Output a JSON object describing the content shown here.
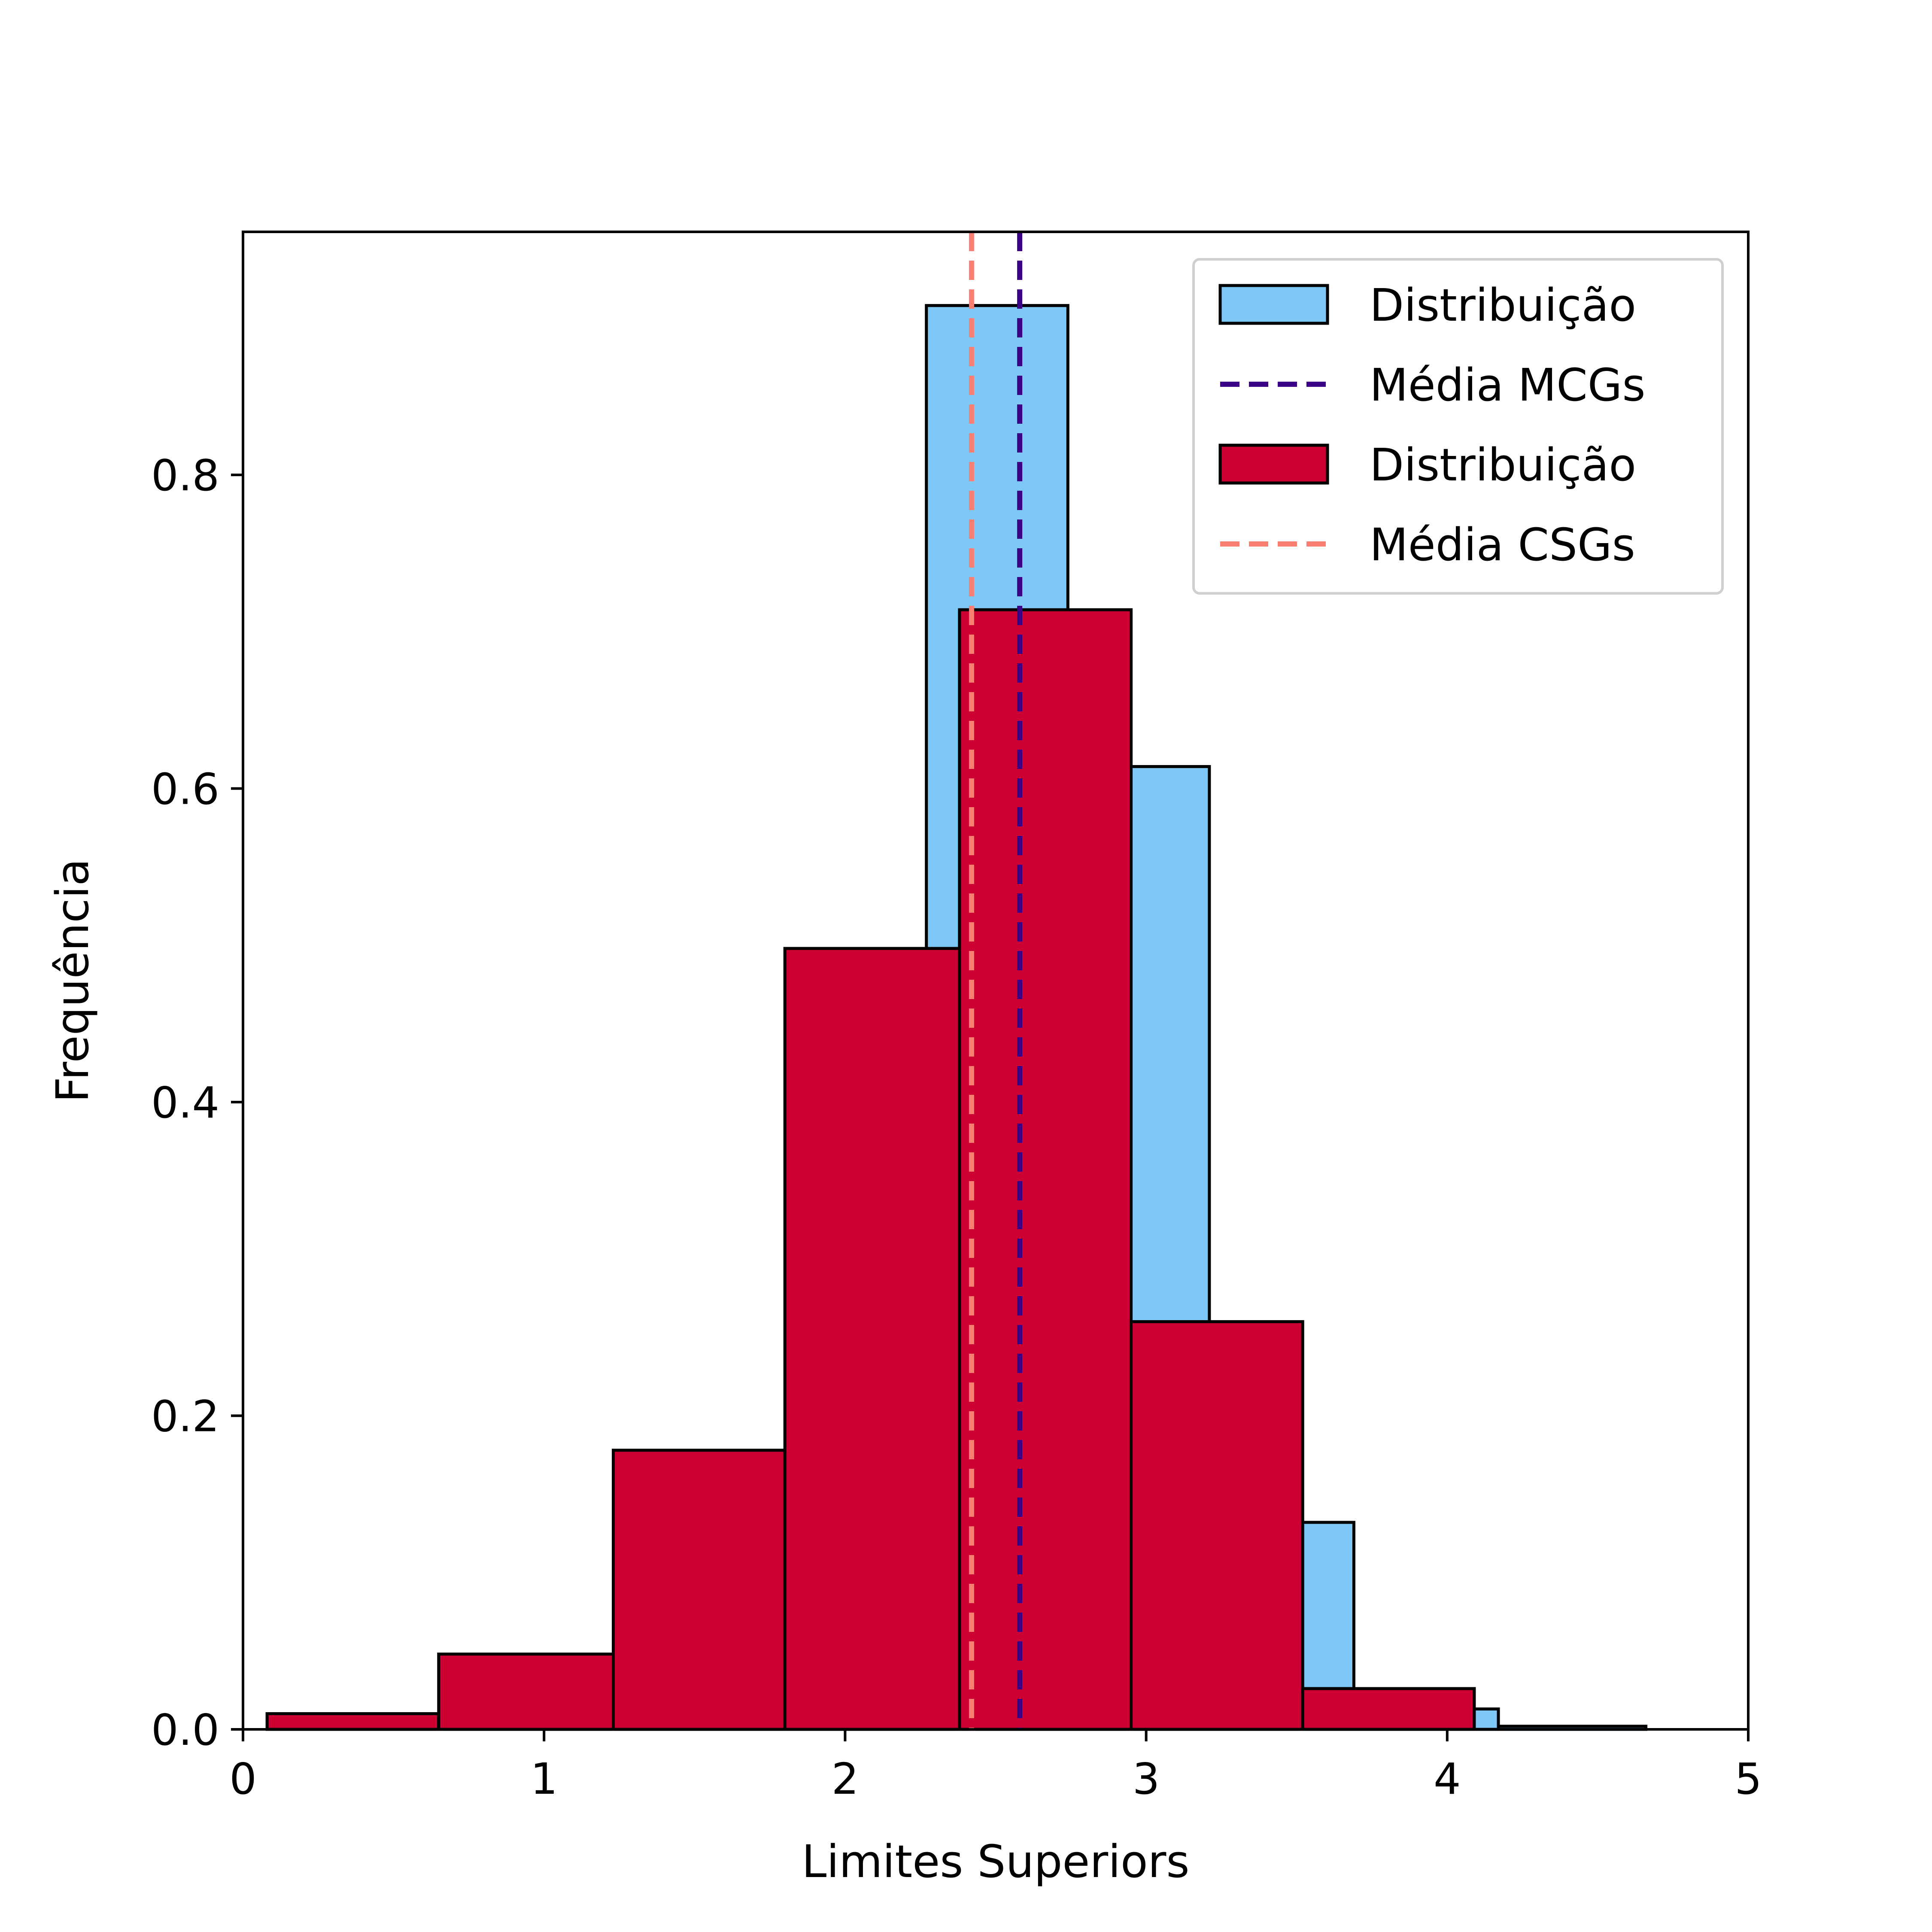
{
  "chart_data": {
    "type": "bar",
    "title": "",
    "xlabel": "Limites Superiors",
    "ylabel": "Frequência",
    "xlim": [
      0,
      5
    ],
    "ylim": [
      0,
      0.955
    ],
    "xticks": [
      0,
      1,
      2,
      3,
      4,
      5
    ],
    "xtick_labels": [
      "0",
      "1",
      "2",
      "3",
      "4",
      "5"
    ],
    "yticks": [
      0.0,
      0.2,
      0.4,
      0.6,
      0.8
    ],
    "ytick_labels": [
      "0.0",
      "0.2",
      "0.4",
      "0.6",
      "0.8"
    ],
    "grid": false,
    "legend_position": "top-right",
    "series": [
      {
        "name": "Distribuição",
        "kind": "histogram",
        "color": "#7ec8f6",
        "edgecolor": "#000000",
        "bin_edges": [
          1.81,
          2.27,
          2.74,
          3.21,
          3.69,
          4.17,
          4.66
        ],
        "values": [
          0.34,
          0.908,
          0.614,
          0.132,
          0.013,
          0.002
        ]
      },
      {
        "name": "Média MCGs",
        "kind": "vline",
        "color": "#3c0086",
        "x": 2.58
      },
      {
        "name": "Distribuição",
        "kind": "histogram",
        "color": "#cc0033",
        "edgecolor": "#000000",
        "bin_edges": [
          0.08,
          0.65,
          1.23,
          1.8,
          2.38,
          2.95,
          3.52,
          4.09
        ],
        "values": [
          0.01,
          0.048,
          0.178,
          0.498,
          0.714,
          0.26,
          0.026
        ]
      },
      {
        "name": "Média CSGs",
        "kind": "vline",
        "color": "#f87f72",
        "x": 2.42
      }
    ]
  }
}
